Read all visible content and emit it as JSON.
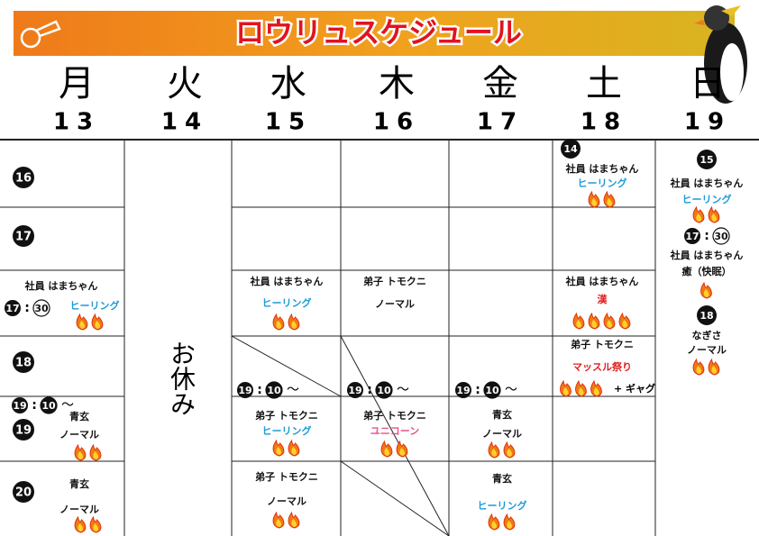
{
  "title": "ロウリュスケジュール",
  "days": [
    {
      "name": "月",
      "date": 13
    },
    {
      "name": "火",
      "date": 14
    },
    {
      "name": "水",
      "date": 15
    },
    {
      "name": "木",
      "date": 16
    },
    {
      "name": "金",
      "date": 17
    },
    {
      "name": "土",
      "date": 18
    },
    {
      "name": "日",
      "date": 19
    }
  ],
  "hours": [
    16,
    17,
    18,
    19,
    20
  ],
  "closed": "お休み",
  "entries": [
    {
      "time": {
        "hour": 17,
        "sep": ":",
        "minute": 30,
        "minute_circle": "outline"
      },
      "staff": "社員 はまちゃん",
      "type": "ヒーリング",
      "color": "#1b9bd7",
      "flames": 2
    },
    {
      "time": {
        "hour": 19,
        "sep": ":",
        "minute": 10,
        "suffix": "〜"
      },
      "staff": "青玄",
      "type": "ノーマル",
      "color": "#111111",
      "flames": 2
    },
    {
      "staff": "青玄",
      "type": "ノーマル",
      "color": "#111111",
      "flames": 2
    },
    {
      "staff": "社員 はまちゃん",
      "type": "ヒーリング",
      "color": "#1b9bd7",
      "flames": 2
    },
    {
      "time": {
        "hour": 19,
        "sep": ":",
        "minute": 10,
        "suffix": "〜"
      },
      "staff": "弟子 トモクニ",
      "type": "ヒーリング",
      "color": "#1b9bd7",
      "flames": 2
    },
    {
      "staff": "弟子 トモクニ",
      "type": "ノーマル",
      "color": "#111111",
      "flames": 2
    },
    {
      "staff": "弟子 トモクニ",
      "type": "ノーマル",
      "color": "#111111",
      "flames": 0
    },
    {
      "time": {
        "hour": 19,
        "sep": ":",
        "minute": 10,
        "suffix": "〜"
      },
      "staff": "弟子 トモクニ",
      "type": "ユニコーン",
      "color": "#e8508c",
      "flames": 2
    },
    {
      "time": {
        "hour": 19,
        "sep": ":",
        "minute": 10,
        "suffix": "〜"
      },
      "staff": "青玄",
      "type": "ノーマル",
      "color": "#111111",
      "flames": 2
    },
    {
      "staff": "青玄",
      "type": "ヒーリング",
      "color": "#1b9bd7",
      "flames": 2
    },
    {
      "time": {
        "hour": 14
      },
      "staff": "社員 はまちゃん",
      "type": "ヒーリング",
      "color": "#1b9bd7",
      "flames": 2
    },
    {
      "staff": "社員 はまちゃん",
      "type": "漢",
      "color": "#e02020",
      "flames": 4
    },
    {
      "staff": "弟子 トモクニ",
      "type": "マッスル祭り",
      "color": "#e02020",
      "flames": 3,
      "extra": "+ ギャグ"
    },
    {
      "time": {
        "hour": 15
      },
      "staff": "社員 はまちゃん",
      "type": "ヒーリング",
      "color": "#1b9bd7",
      "flames": 2
    },
    {
      "time": {
        "hour": 17,
        "sep": ":",
        "minute": 30,
        "minute_circle": "outline"
      },
      "staff": "社員 はまちゃん",
      "type": "癒（快眠）",
      "color": "#111111",
      "flames": 1
    },
    {
      "time": {
        "hour": 18
      },
      "staff": "なぎさ",
      "type": "ノーマル",
      "color": "#111111",
      "flames": 2
    }
  ]
}
